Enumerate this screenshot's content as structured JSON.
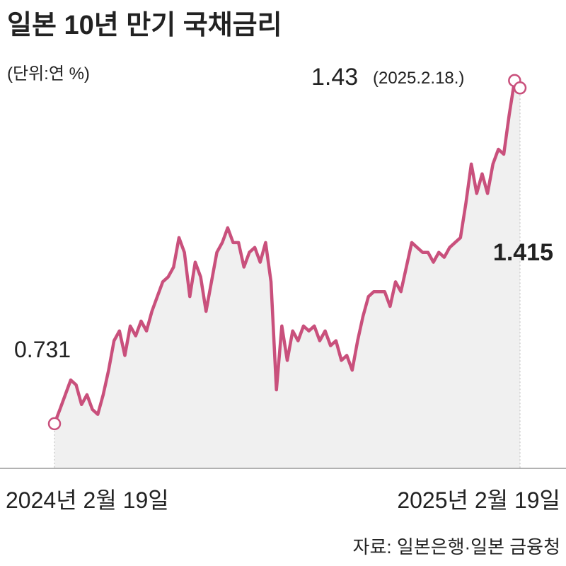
{
  "chart_data": {
    "type": "line",
    "title": "일본 10년 만기 국채금리",
    "subtitle": "(단위:연 %)",
    "annotation": "(2025.2.18.)",
    "source": "자료: 일본은행·일본 금융청",
    "categories": [
      "2024년 2월 19일",
      null,
      null,
      null,
      null,
      null,
      null,
      null,
      null,
      null,
      null,
      null,
      null,
      null,
      null,
      null,
      null,
      null,
      null,
      null,
      null,
      null,
      null,
      null,
      null,
      null,
      null,
      null,
      null,
      null,
      null,
      null,
      null,
      null,
      null,
      null,
      null,
      null,
      null,
      null,
      null,
      null,
      null,
      null,
      null,
      null,
      null,
      null,
      null,
      null,
      null,
      null,
      null,
      null,
      null,
      null,
      null,
      null,
      null,
      null,
      null,
      null,
      null,
      null,
      null,
      null,
      null,
      null,
      null,
      null,
      null,
      null,
      null,
      null,
      null,
      null,
      null,
      null,
      null,
      null,
      null,
      null,
      null,
      null,
      null,
      null,
      "2025년 2월 19일"
    ],
    "series": [
      {
        "name": "일본 10년 만기 국채금리",
        "color": "#c9507c",
        "values": [
          0.731,
          0.76,
          0.79,
          0.82,
          0.81,
          0.77,
          0.79,
          0.76,
          0.75,
          0.79,
          0.84,
          0.9,
          0.92,
          0.87,
          0.93,
          0.91,
          0.94,
          0.92,
          0.96,
          0.99,
          1.02,
          1.03,
          1.05,
          1.11,
          1.08,
          0.99,
          1.06,
          1.03,
          0.96,
          1.02,
          1.08,
          1.1,
          1.13,
          1.1,
          1.1,
          1.05,
          1.08,
          1.09,
          1.06,
          1.1,
          1.02,
          0.8,
          0.93,
          0.86,
          0.92,
          0.9,
          0.93,
          0.92,
          0.93,
          0.9,
          0.92,
          0.89,
          0.9,
          0.86,
          0.87,
          0.84,
          0.9,
          0.95,
          0.99,
          1.0,
          1.0,
          1.0,
          0.97,
          1.02,
          1.0,
          1.05,
          1.1,
          1.09,
          1.08,
          1.08,
          1.06,
          1.08,
          1.07,
          1.09,
          1.1,
          1.11,
          1.18,
          1.26,
          1.2,
          1.24,
          1.2,
          1.26,
          1.29,
          1.28,
          1.36,
          1.43,
          1.415
        ]
      }
    ],
    "ylim": [
      0.64,
      1.45
    ]
  }
}
